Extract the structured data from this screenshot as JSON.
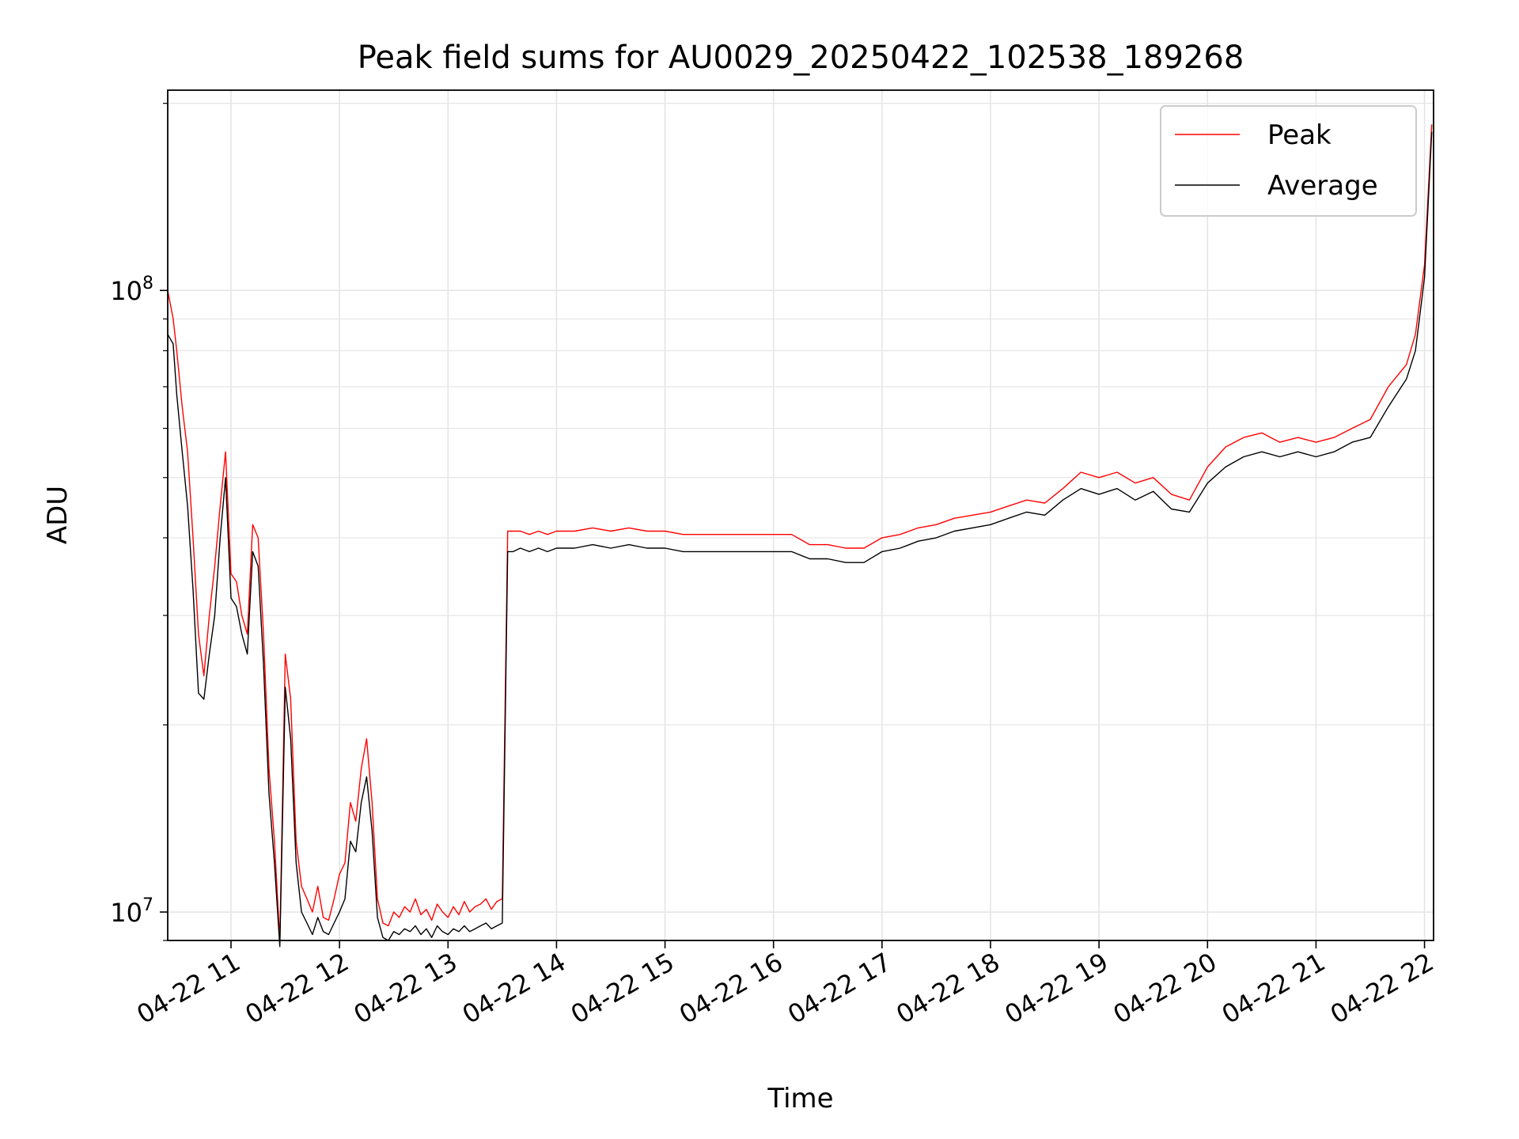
{
  "chart_data": {
    "type": "line",
    "title": "Peak field sums for AU0029_20250422_102538_189268",
    "xlabel": "Time",
    "ylabel": "ADU",
    "y_scale": "log",
    "grid": true,
    "legend_position": "top-right",
    "xlim": [
      "2025-04-22 10:25",
      "2025-04-22 22:05"
    ],
    "ylim": [
      9000000,
      210000000
    ],
    "x_ticks": [
      "2025-04-22 11:00",
      "2025-04-22 12:00",
      "2025-04-22 13:00",
      "2025-04-22 14:00",
      "2025-04-22 15:00",
      "2025-04-22 16:00",
      "2025-04-22 17:00",
      "2025-04-22 18:00",
      "2025-04-22 19:00",
      "2025-04-22 20:00",
      "2025-04-22 21:00",
      "2025-04-22 22:00"
    ],
    "x_tick_labels": [
      "04-22 11",
      "04-22 12",
      "04-22 13",
      "04-22 14",
      "04-22 15",
      "04-22 16",
      "04-22 17",
      "04-22 18",
      "04-22 19",
      "04-22 20",
      "04-22 21",
      "04-22 22"
    ],
    "y_ticks": [
      10000000,
      100000000
    ],
    "y_tick_labels": [
      {
        "base": "10",
        "exp": "7"
      },
      {
        "base": "10",
        "exp": "8"
      }
    ],
    "series": [
      {
        "name": "Peak",
        "color": "#ff0000",
        "x": [
          "2025-04-22 10:25",
          "2025-04-22 10:28",
          "2025-04-22 10:30",
          "2025-04-22 10:33",
          "2025-04-22 10:36",
          "2025-04-22 10:39",
          "2025-04-22 10:42",
          "2025-04-22 10:45",
          "2025-04-22 10:48",
          "2025-04-22 10:51",
          "2025-04-22 10:54",
          "2025-04-22 10:57",
          "2025-04-22 11:00",
          "2025-04-22 11:03",
          "2025-04-22 11:06",
          "2025-04-22 11:09",
          "2025-04-22 11:12",
          "2025-04-22 11:15",
          "2025-04-22 11:18",
          "2025-04-22 11:21",
          "2025-04-22 11:24",
          "2025-04-22 11:27",
          "2025-04-22 11:30",
          "2025-04-22 11:33",
          "2025-04-22 11:36",
          "2025-04-22 11:39",
          "2025-04-22 11:42",
          "2025-04-22 11:45",
          "2025-04-22 11:48",
          "2025-04-22 11:51",
          "2025-04-22 11:54",
          "2025-04-22 11:57",
          "2025-04-22 12:00",
          "2025-04-22 12:03",
          "2025-04-22 12:06",
          "2025-04-22 12:09",
          "2025-04-22 12:12",
          "2025-04-22 12:15",
          "2025-04-22 12:18",
          "2025-04-22 12:21",
          "2025-04-22 12:24",
          "2025-04-22 12:27",
          "2025-04-22 12:30",
          "2025-04-22 12:33",
          "2025-04-22 12:36",
          "2025-04-22 12:39",
          "2025-04-22 12:42",
          "2025-04-22 12:45",
          "2025-04-22 12:48",
          "2025-04-22 12:51",
          "2025-04-22 12:54",
          "2025-04-22 12:57",
          "2025-04-22 13:00",
          "2025-04-22 13:03",
          "2025-04-22 13:06",
          "2025-04-22 13:09",
          "2025-04-22 13:12",
          "2025-04-22 13:15",
          "2025-04-22 13:18",
          "2025-04-22 13:21",
          "2025-04-22 13:24",
          "2025-04-22 13:27",
          "2025-04-22 13:30",
          "2025-04-22 13:33",
          "2025-04-22 13:36",
          "2025-04-22 13:40",
          "2025-04-22 13:45",
          "2025-04-22 13:50",
          "2025-04-22 13:55",
          "2025-04-22 14:00",
          "2025-04-22 14:10",
          "2025-04-22 14:20",
          "2025-04-22 14:30",
          "2025-04-22 14:40",
          "2025-04-22 14:50",
          "2025-04-22 15:00",
          "2025-04-22 15:10",
          "2025-04-22 15:20",
          "2025-04-22 15:30",
          "2025-04-22 15:40",
          "2025-04-22 15:50",
          "2025-04-22 16:00",
          "2025-04-22 16:10",
          "2025-04-22 16:20",
          "2025-04-22 16:30",
          "2025-04-22 16:40",
          "2025-04-22 16:50",
          "2025-04-22 17:00",
          "2025-04-22 17:10",
          "2025-04-22 17:20",
          "2025-04-22 17:30",
          "2025-04-22 17:40",
          "2025-04-22 17:50",
          "2025-04-22 18:00",
          "2025-04-22 18:10",
          "2025-04-22 18:20",
          "2025-04-22 18:30",
          "2025-04-22 18:40",
          "2025-04-22 18:50",
          "2025-04-22 19:00",
          "2025-04-22 19:10",
          "2025-04-22 19:20",
          "2025-04-22 19:30",
          "2025-04-22 19:40",
          "2025-04-22 19:50",
          "2025-04-22 20:00",
          "2025-04-22 20:10",
          "2025-04-22 20:20",
          "2025-04-22 20:30",
          "2025-04-22 20:40",
          "2025-04-22 20:50",
          "2025-04-22 21:00",
          "2025-04-22 21:10",
          "2025-04-22 21:20",
          "2025-04-22 21:30",
          "2025-04-22 21:40",
          "2025-04-22 21:50",
          "2025-04-22 21:55",
          "2025-04-22 22:00",
          "2025-04-22 22:04"
        ],
        "values": [
          100000000,
          90000000,
          80000000,
          65000000,
          55000000,
          40000000,
          28000000,
          24000000,
          30000000,
          36000000,
          45000000,
          55000000,
          35000000,
          34000000,
          30000000,
          28000000,
          42000000,
          40000000,
          28000000,
          17000000,
          13000000,
          9000000,
          26000000,
          22000000,
          13000000,
          11000000,
          10500000,
          10000000,
          11000000,
          9800000,
          9700000,
          10500000,
          11500000,
          12000000,
          15000000,
          14000000,
          17000000,
          19000000,
          15000000,
          10500000,
          9600000,
          9500000,
          10000000,
          9800000,
          10200000,
          10000000,
          10500000,
          9900000,
          10100000,
          9700000,
          10300000,
          10000000,
          9800000,
          10200000,
          9900000,
          10400000,
          10000000,
          10200000,
          10300000,
          10500000,
          10100000,
          10400000,
          10500000,
          41000000,
          41000000,
          41000000,
          40500000,
          41000000,
          40500000,
          41000000,
          41000000,
          41500000,
          41000000,
          41500000,
          41000000,
          41000000,
          40500000,
          40500000,
          40500000,
          40500000,
          40500000,
          40500000,
          40500000,
          39000000,
          39000000,
          38500000,
          38500000,
          40000000,
          40500000,
          41500000,
          42000000,
          43000000,
          43500000,
          44000000,
          45000000,
          46000000,
          45500000,
          48000000,
          51000000,
          50000000,
          51000000,
          49000000,
          50000000,
          47000000,
          46000000,
          52000000,
          56000000,
          58000000,
          59000000,
          57000000,
          58000000,
          57000000,
          58000000,
          60000000,
          62000000,
          70000000,
          76000000,
          85000000,
          110000000,
          185000000
        ]
      },
      {
        "name": "Average",
        "color": "#000000",
        "x": [
          "2025-04-22 10:25",
          "2025-04-22 10:28",
          "2025-04-22 10:30",
          "2025-04-22 10:33",
          "2025-04-22 10:36",
          "2025-04-22 10:39",
          "2025-04-22 10:42",
          "2025-04-22 10:45",
          "2025-04-22 10:48",
          "2025-04-22 10:51",
          "2025-04-22 10:54",
          "2025-04-22 10:57",
          "2025-04-22 11:00",
          "2025-04-22 11:03",
          "2025-04-22 11:06",
          "2025-04-22 11:09",
          "2025-04-22 11:12",
          "2025-04-22 11:15",
          "2025-04-22 11:18",
          "2025-04-22 11:21",
          "2025-04-22 11:24",
          "2025-04-22 11:27",
          "2025-04-22 11:30",
          "2025-04-22 11:33",
          "2025-04-22 11:36",
          "2025-04-22 11:39",
          "2025-04-22 11:42",
          "2025-04-22 11:45",
          "2025-04-22 11:48",
          "2025-04-22 11:51",
          "2025-04-22 11:54",
          "2025-04-22 11:57",
          "2025-04-22 12:00",
          "2025-04-22 12:03",
          "2025-04-22 12:06",
          "2025-04-22 12:09",
          "2025-04-22 12:12",
          "2025-04-22 12:15",
          "2025-04-22 12:18",
          "2025-04-22 12:21",
          "2025-04-22 12:24",
          "2025-04-22 12:27",
          "2025-04-22 12:30",
          "2025-04-22 12:33",
          "2025-04-22 12:36",
          "2025-04-22 12:39",
          "2025-04-22 12:42",
          "2025-04-22 12:45",
          "2025-04-22 12:48",
          "2025-04-22 12:51",
          "2025-04-22 12:54",
          "2025-04-22 12:57",
          "2025-04-22 13:00",
          "2025-04-22 13:03",
          "2025-04-22 13:06",
          "2025-04-22 13:09",
          "2025-04-22 13:12",
          "2025-04-22 13:15",
          "2025-04-22 13:18",
          "2025-04-22 13:21",
          "2025-04-22 13:24",
          "2025-04-22 13:27",
          "2025-04-22 13:30",
          "2025-04-22 13:33",
          "2025-04-22 13:36",
          "2025-04-22 13:40",
          "2025-04-22 13:45",
          "2025-04-22 13:50",
          "2025-04-22 13:55",
          "2025-04-22 14:00",
          "2025-04-22 14:10",
          "2025-04-22 14:20",
          "2025-04-22 14:30",
          "2025-04-22 14:40",
          "2025-04-22 14:50",
          "2025-04-22 15:00",
          "2025-04-22 15:10",
          "2025-04-22 15:20",
          "2025-04-22 15:30",
          "2025-04-22 15:40",
          "2025-04-22 15:50",
          "2025-04-22 16:00",
          "2025-04-22 16:10",
          "2025-04-22 16:20",
          "2025-04-22 16:30",
          "2025-04-22 16:40",
          "2025-04-22 16:50",
          "2025-04-22 17:00",
          "2025-04-22 17:10",
          "2025-04-22 17:20",
          "2025-04-22 17:30",
          "2025-04-22 17:40",
          "2025-04-22 17:50",
          "2025-04-22 18:00",
          "2025-04-22 18:10",
          "2025-04-22 18:20",
          "2025-04-22 18:30",
          "2025-04-22 18:40",
          "2025-04-22 18:50",
          "2025-04-22 19:00",
          "2025-04-22 19:10",
          "2025-04-22 19:20",
          "2025-04-22 19:30",
          "2025-04-22 19:40",
          "2025-04-22 19:50",
          "2025-04-22 20:00",
          "2025-04-22 20:10",
          "2025-04-22 20:20",
          "2025-04-22 20:30",
          "2025-04-22 20:40",
          "2025-04-22 20:50",
          "2025-04-22 21:00",
          "2025-04-22 21:10",
          "2025-04-22 21:20",
          "2025-04-22 21:30",
          "2025-04-22 21:40",
          "2025-04-22 21:50",
          "2025-04-22 21:55",
          "2025-04-22 22:00",
          "2025-04-22 22:04"
        ],
        "values": [
          85000000,
          82000000,
          68000000,
          55000000,
          45000000,
          33000000,
          22500000,
          22000000,
          26000000,
          30000000,
          40000000,
          50000000,
          32000000,
          31000000,
          28000000,
          26000000,
          38000000,
          36000000,
          25000000,
          15500000,
          12000000,
          8800000,
          23000000,
          19000000,
          12000000,
          10000000,
          9600000,
          9200000,
          9800000,
          9300000,
          9200000,
          9600000,
          10000000,
          10500000,
          13000000,
          12500000,
          15000000,
          16500000,
          13500000,
          9800000,
          9100000,
          9000000,
          9300000,
          9200000,
          9400000,
          9300000,
          9500000,
          9200000,
          9400000,
          9100000,
          9500000,
          9300000,
          9200000,
          9400000,
          9300000,
          9500000,
          9300000,
          9400000,
          9500000,
          9600000,
          9400000,
          9500000,
          9600000,
          38000000,
          38000000,
          38500000,
          38000000,
          38500000,
          38000000,
          38500000,
          38500000,
          39000000,
          38500000,
          39000000,
          38500000,
          38500000,
          38000000,
          38000000,
          38000000,
          38000000,
          38000000,
          38000000,
          38000000,
          37000000,
          37000000,
          36500000,
          36500000,
          38000000,
          38500000,
          39500000,
          40000000,
          41000000,
          41500000,
          42000000,
          43000000,
          44000000,
          43500000,
          46000000,
          48000000,
          47000000,
          48000000,
          46000000,
          47500000,
          44500000,
          44000000,
          49000000,
          52000000,
          54000000,
          55000000,
          54000000,
          55000000,
          54000000,
          55000000,
          57000000,
          58000000,
          65000000,
          72000000,
          80000000,
          105000000,
          180000000
        ]
      }
    ]
  }
}
